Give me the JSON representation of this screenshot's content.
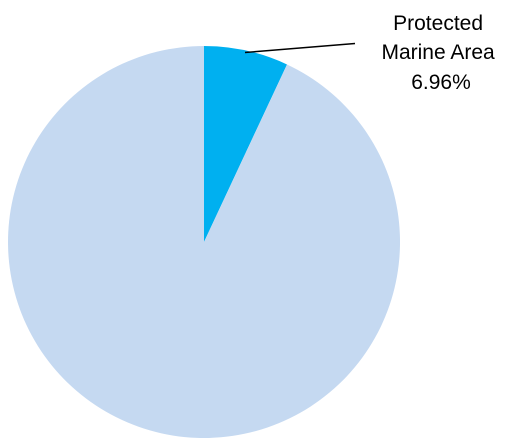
{
  "chart_data": {
    "type": "pie",
    "start_angle_deg": 0,
    "direction": "clockwise",
    "slices": [
      {
        "value": 6.96,
        "color": "#00b0f0",
        "label_lines": [
          "Protected",
          "Marine Area",
          "6.96%"
        ]
      },
      {
        "value": 93.04,
        "color": "#c5d9f1",
        "label_lines": []
      }
    ],
    "legend": "none",
    "grid": false
  }
}
